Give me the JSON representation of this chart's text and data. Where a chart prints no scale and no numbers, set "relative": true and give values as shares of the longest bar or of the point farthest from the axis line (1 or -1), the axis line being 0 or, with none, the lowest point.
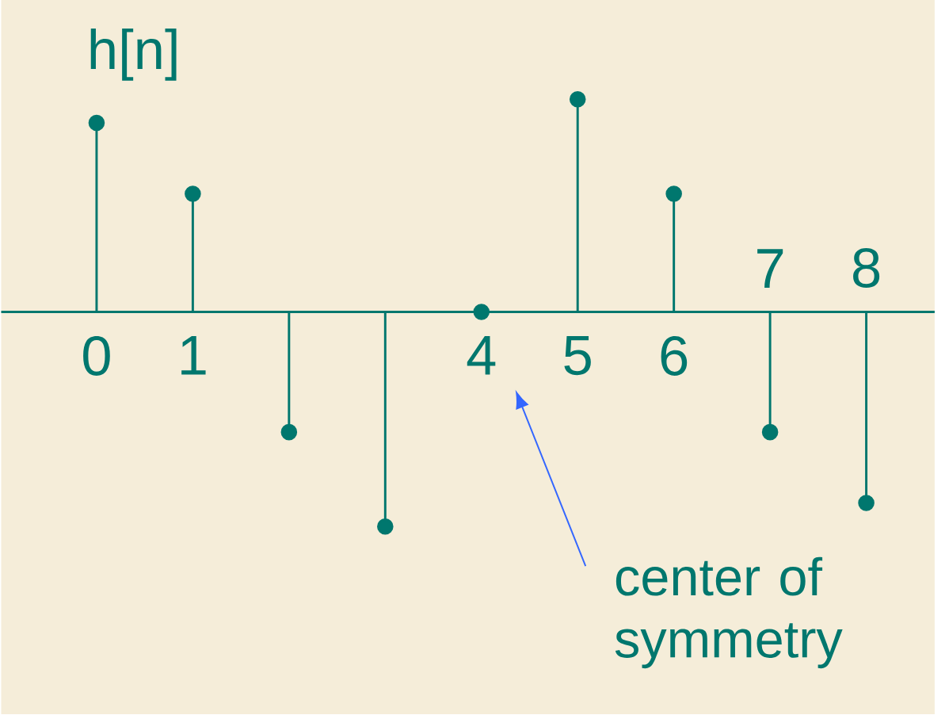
{
  "chart_data": {
    "type": "lollipop",
    "relative": true,
    "ylabel": "h[n]",
    "categories": [
      "0",
      "1",
      null,
      null,
      "4",
      "5",
      "6",
      "7",
      "8"
    ],
    "values": [
      0.88,
      0.55,
      -0.56,
      -1,
      0,
      0.99,
      0.55,
      -0.56,
      -0.89
    ],
    "color": "#00776e",
    "marker": "circle",
    "annotations": [
      "center of symmetry"
    ]
  }
}
